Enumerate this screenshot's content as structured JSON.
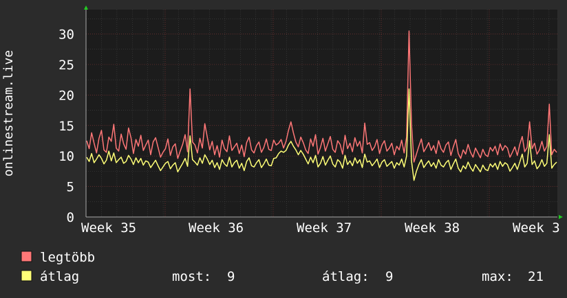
{
  "chart_data": {
    "type": "line",
    "ylabel": "onlinestream.live",
    "xlabel": "",
    "ylim": [
      0,
      34
    ],
    "yticks": [
      0,
      5,
      10,
      15,
      20,
      25,
      30
    ],
    "xticks": [
      "Week 35",
      "Week 36",
      "Week 37",
      "Week 38",
      "Week 3"
    ],
    "grid": true,
    "colors": {
      "background": "#2b2b2b",
      "plot_background": "#1c1c1c",
      "grid_minor": "#444444",
      "grid_major": "#7a3333",
      "axis_arrow": "#22cc22",
      "max_series": "#ff7777",
      "avg_series": "#ffff77"
    },
    "series": [
      {
        "name": "legtöbb",
        "color": "#ff7777",
        "values": [
          12.5,
          11.2,
          13.8,
          12.1,
          10.5,
          12.9,
          14.2,
          11.0,
          10.6,
          13.1,
          12.4,
          15.2,
          11.3,
          10.8,
          13.6,
          12.0,
          11.1,
          14.6,
          13.0,
          10.4,
          12.7,
          11.6,
          13.4,
          10.9,
          11.8,
          12.6,
          10.2,
          12.3,
          13.0,
          11.4,
          9.8,
          10.6,
          11.2,
          12.8,
          10.1,
          11.5,
          12.0,
          9.6,
          10.8,
          11.9,
          13.5,
          10.7,
          21.0,
          12.3,
          11.8,
          10.5,
          12.9,
          11.3,
          15.3,
          13.1,
          11.0,
          12.4,
          10.2,
          11.7,
          9.8,
          12.6,
          11.2,
          10.7,
          13.3,
          10.9,
          11.5,
          12.1,
          10.4,
          11.8,
          9.9,
          12.2,
          13.1,
          11.0,
          10.5,
          11.7,
          12.3,
          10.6,
          11.4,
          12.8,
          11.1,
          10.9,
          12.6,
          11.8,
          12.1,
          12.7,
          11.3,
          12.4,
          14.2,
          15.6,
          13.8,
          12.3,
          11.5,
          13.1,
          12.2,
          11.0,
          10.4,
          12.8,
          11.6,
          13.5,
          10.3,
          11.4,
          12.9,
          10.8,
          12.0,
          13.2,
          11.1,
          10.6,
          12.5,
          11.9,
          10.3,
          13.4,
          11.2,
          12.1,
          10.7,
          13.0,
          11.6,
          12.4,
          10.5,
          15.4,
          11.9,
          12.2,
          10.9,
          11.5,
          12.7,
          10.4,
          11.8,
          12.5,
          10.8,
          11.3,
          12.1,
          10.2,
          11.6,
          11.0,
          12.6,
          10.5,
          13.1,
          30.5,
          15.2,
          9.0,
          10.3,
          11.6,
          12.8,
          10.7,
          11.4,
          12.2,
          10.9,
          11.7,
          10.4,
          12.5,
          11.2,
          10.6,
          11.8,
          12.3,
          10.1,
          11.5,
          12.7,
          10.4,
          9.6,
          11.0,
          10.3,
          11.9,
          10.6,
          9.8,
          11.3,
          10.5,
          9.7,
          11.1,
          10.2,
          9.9,
          11.4,
          10.8,
          11.6,
          10.2,
          12.0,
          10.9,
          11.7,
          11.3,
          9.8,
          10.6,
          11.5,
          10.1,
          11.9,
          13.2,
          10.7,
          11.4,
          15.6,
          11.2,
          12.1,
          10.3,
          11.0,
          12.4,
          10.8,
          11.6,
          18.5,
          10.2,
          11.1,
          10.6
        ]
      },
      {
        "name": "átlag",
        "color": "#ffff77",
        "values": [
          9.8,
          9.1,
          10.4,
          8.9,
          9.5,
          10.2,
          9.6,
          8.7,
          9.3,
          10.8,
          9.2,
          10.5,
          8.9,
          9.4,
          9.8,
          8.8,
          9.1,
          10.1,
          9.5,
          8.6,
          9.7,
          8.9,
          9.6,
          8.5,
          9.2,
          9.0,
          8.1,
          8.7,
          9.3,
          8.4,
          7.6,
          8.2,
          8.8,
          9.1,
          7.9,
          8.5,
          8.9,
          7.4,
          8.1,
          8.8,
          9.6,
          8.3,
          13.3,
          9.4,
          9.0,
          8.5,
          9.7,
          8.8,
          10.2,
          9.5,
          8.6,
          9.3,
          8.1,
          8.9,
          7.8,
          9.4,
          8.7,
          8.3,
          9.8,
          8.2,
          8.9,
          9.3,
          8.0,
          8.8,
          7.6,
          9.1,
          9.7,
          8.4,
          8.2,
          8.9,
          9.4,
          8.1,
          8.7,
          9.5,
          8.5,
          8.4,
          9.6,
          9.7,
          10.4,
          10.8,
          10.6,
          10.9,
          11.8,
          12.4,
          11.6,
          11.0,
          10.2,
          10.9,
          10.3,
          9.5,
          8.7,
          9.8,
          8.9,
          10.1,
          8.2,
          8.8,
          9.9,
          8.5,
          9.3,
          10.0,
          8.7,
          8.2,
          9.4,
          9.0,
          8.0,
          10.1,
          8.6,
          9.2,
          8.4,
          9.7,
          8.8,
          9.4,
          8.1,
          10.3,
          9.0,
          9.2,
          8.4,
          8.9,
          9.5,
          8.1,
          9.0,
          9.4,
          8.3,
          8.7,
          9.1,
          8.0,
          8.9,
          8.5,
          9.5,
          8.2,
          10.0,
          21.0,
          9.2,
          6.0,
          7.5,
          8.6,
          9.4,
          8.1,
          8.7,
          9.2,
          8.3,
          8.9,
          8.0,
          9.4,
          8.5,
          8.2,
          8.9,
          9.3,
          7.8,
          8.7,
          9.5,
          8.0,
          7.4,
          8.4,
          7.9,
          9.0,
          8.1,
          7.5,
          8.6,
          8.0,
          7.4,
          8.5,
          7.8,
          7.6,
          8.7,
          8.2,
          8.8,
          7.8,
          9.1,
          8.3,
          8.9,
          8.6,
          7.5,
          8.1,
          8.8,
          7.8,
          9.0,
          10.3,
          8.2,
          8.8,
          12.5,
          8.6,
          9.2,
          7.9,
          8.4,
          9.4,
          8.3,
          8.8,
          13.5,
          8.0,
          8.6,
          9.0
        ]
      }
    ],
    "legend": {
      "items": [
        {
          "label": "legtöbb",
          "color": "#ff7777"
        },
        {
          "label": "átlag",
          "color": "#ffff77"
        }
      ],
      "stats": [
        {
          "label": "most:",
          "value": "9"
        },
        {
          "label": "átlag:",
          "value": "9"
        },
        {
          "label": "max:",
          "value": "21"
        }
      ]
    }
  }
}
